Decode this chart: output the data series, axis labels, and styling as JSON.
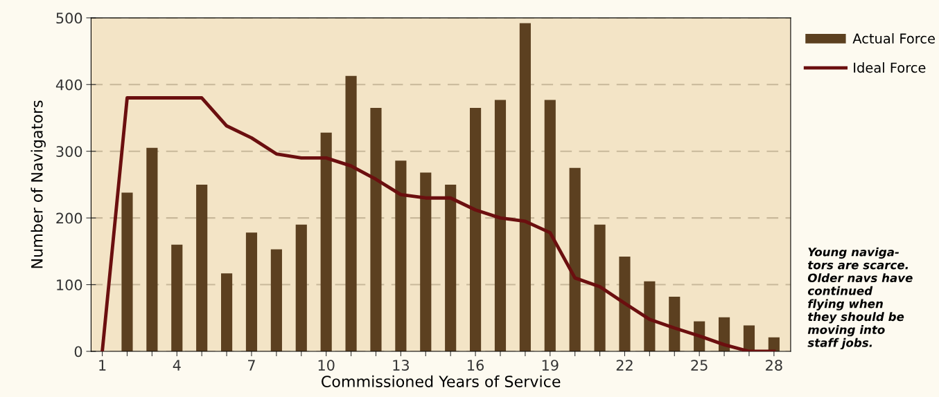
{
  "chart_data": {
    "type": "bar",
    "xlabel": "Commissioned Years of Service",
    "ylabel": "Number of Navigators",
    "xlim": [
      0.55,
      28.67
    ],
    "ylim": [
      0,
      500
    ],
    "xticks": [
      1,
      {
        "value": 2,
        "label": null
      },
      {
        "value": 3,
        "label": null
      },
      4,
      {
        "value": 5,
        "label": null
      },
      {
        "value": 6,
        "label": null
      },
      7,
      {
        "value": 8,
        "label": null
      },
      {
        "value": 9,
        "label": null
      },
      10,
      {
        "value": 11,
        "label": null
      },
      {
        "value": 12,
        "label": null
      },
      13,
      {
        "value": 14,
        "label": null
      },
      {
        "value": 15,
        "label": null
      },
      16,
      {
        "value": 17,
        "label": null
      },
      {
        "value": 18,
        "label": null
      },
      19,
      {
        "value": 20,
        "label": null
      },
      {
        "value": 21,
        "label": null
      },
      22,
      {
        "value": 23,
        "label": null
      },
      {
        "value": 24,
        "label": null
      },
      25,
      {
        "value": 26,
        "label": null
      },
      {
        "value": 27,
        "label": null
      },
      28
    ],
    "yticks": [
      0,
      100,
      200,
      300,
      400,
      500
    ],
    "grid": "y",
    "legend": "right",
    "series": [
      {
        "name": "Actual Force",
        "color": "#5c4020",
        "x": [
          2,
          3,
          4,
          5,
          6,
          7,
          8,
          9,
          10,
          11,
          12,
          13,
          14,
          15,
          16,
          17,
          18,
          19,
          20,
          21,
          22,
          23,
          24,
          25,
          26,
          27,
          28
        ],
        "values": [
          238,
          305,
          160,
          250,
          117,
          178,
          153,
          190,
          328,
          413,
          365,
          286,
          268,
          250,
          365,
          377,
          492,
          377,
          275,
          190,
          142,
          105,
          82,
          45,
          51,
          39,
          21
        ]
      },
      {
        "name": "Ideal Force",
        "type": "line",
        "color": "#6b0f0f",
        "x": [
          1,
          2,
          5,
          6,
          7,
          8,
          9,
          10,
          11,
          12,
          13,
          14,
          15,
          16,
          17,
          18,
          19,
          20,
          21,
          22,
          23,
          24,
          25,
          26,
          27,
          28
        ],
        "values": [
          0,
          380,
          380,
          338,
          320,
          296,
          290,
          290,
          278,
          258,
          235,
          230,
          230,
          212,
          200,
          195,
          178,
          110,
          97,
          72,
          48,
          35,
          23,
          10,
          0,
          0
        ]
      }
    ],
    "annotations": [
      "Young naviga-\ntors are scarce.\nOlder navs have\ncontinued\nflying when\nthey should be\nmoving into\nstaff jobs."
    ]
  }
}
